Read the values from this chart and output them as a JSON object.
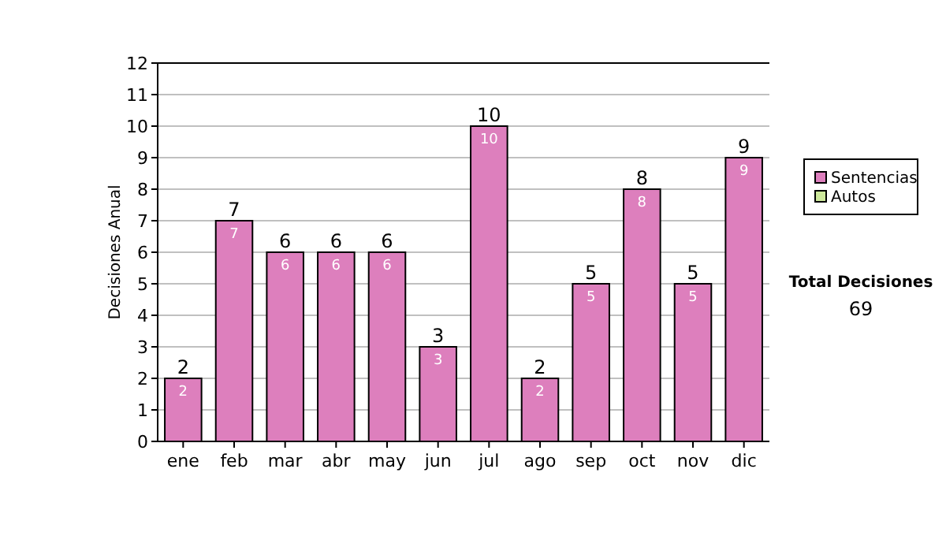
{
  "chart_data": {
    "type": "bar",
    "ylabel": "Decisiones Anual",
    "categories": [
      "ene",
      "feb",
      "mar",
      "abr",
      "may",
      "jun",
      "jul",
      "ago",
      "sep",
      "oct",
      "nov",
      "dic"
    ],
    "series": [
      {
        "name": "Sentencias",
        "color": "#dd7fbd",
        "values": [
          2,
          7,
          6,
          6,
          6,
          3,
          10,
          2,
          5,
          8,
          5,
          9
        ],
        "value_labels": [
          "2",
          "7",
          "6",
          "6",
          "6",
          "3",
          "10",
          "2",
          "5",
          "8",
          "5",
          "9"
        ]
      },
      {
        "name": "Autos",
        "color": "#cde89b",
        "values": [
          0,
          0,
          0,
          0,
          0,
          0,
          0,
          0,
          0,
          0,
          0,
          0
        ],
        "value_labels": [
          null,
          null,
          null,
          null,
          null,
          null,
          null,
          null,
          null,
          null,
          null,
          null
        ]
      }
    ],
    "stacked": true,
    "totals": [
      "2",
      "7",
      "6",
      "6",
      "6",
      "3",
      "10",
      "2",
      "5",
      "8",
      "5",
      "9"
    ],
    "ylim": [
      0,
      12
    ],
    "yticks": [
      0,
      1,
      2,
      3,
      4,
      5,
      6,
      7,
      8,
      9,
      10,
      11,
      12
    ],
    "grid": "y",
    "legend": "right",
    "annotations": [
      "Total Decisiones",
      "69"
    ]
  }
}
